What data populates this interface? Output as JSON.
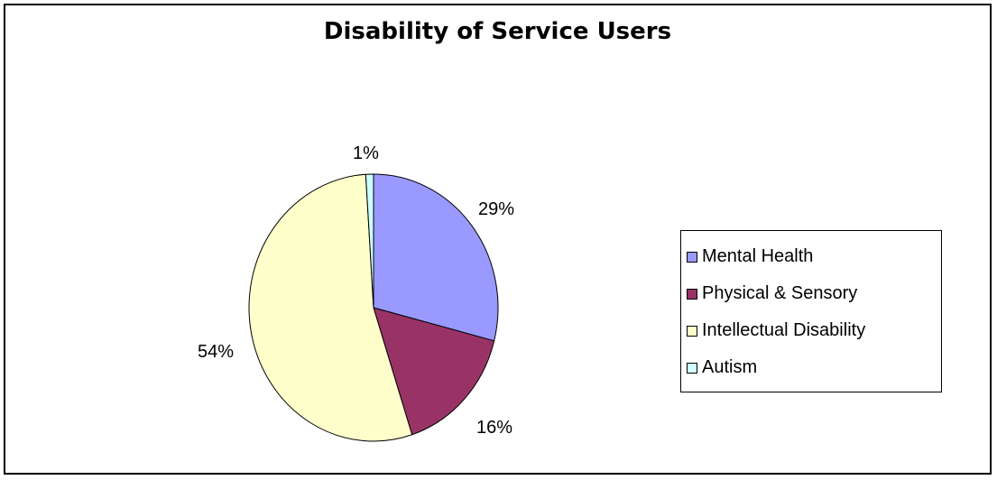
{
  "chart_data": {
    "type": "pie",
    "title": "Disability of Service Users",
    "series": [
      {
        "name": "Mental Health",
        "value": 29,
        "label": "29%",
        "color": "#9999ff"
      },
      {
        "name": "Physical & Sensory",
        "value": 16,
        "label": "16%",
        "color": "#993366"
      },
      {
        "name": "Intellectual Disability",
        "value": 54,
        "label": "54%",
        "color": "#ffffcc"
      },
      {
        "name": "Autism",
        "value": 1,
        "label": "1%",
        "color": "#ccffff"
      }
    ],
    "legend": {
      "position": "right"
    }
  }
}
